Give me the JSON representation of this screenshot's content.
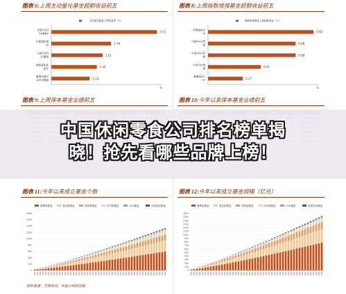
{
  "banner": {
    "line1": "中国休闲零食公司排名榜单揭",
    "line2": "晓！抢先看哪些品牌上榜！"
  },
  "source": "资料来源：万得资讯、中金公司研究部",
  "colors": {
    "accent": "#8b3a0e",
    "bar": "#c0501a",
    "bar_light": "#f0c890",
    "gray": "#bbbbbb",
    "line": "#999999"
  },
  "chart_data": [
    {
      "id": "fig6",
      "label": "图表 6:",
      "title": "上周主动量化基金超额收益前五",
      "type": "bar",
      "orientation": "horizontal",
      "legend": "主动量化基金上周收益率（%）",
      "categories": [
        "华夏沪深300增强A",
        "中欧量化驱动",
        "大成沪深300增强",
        "国金量化多因子",
        "景顺长城沪深300增强"
      ],
      "cat_lines": [
        [
          "华夏沪深3",
          "00增强A"
        ],
        [
          "中欧量化驱",
          "动"
        ],
        [
          "大成沪深3",
          "00增强"
        ],
        [
          "国金量化多",
          "因子"
        ],
        [
          "景顺长城沪",
          "深300增强"
        ]
      ],
      "values": [
        3.11,
        1.76,
        1.51,
        1.34,
        1.13
      ],
      "value_labels": [
        "3.11",
        "1.76",
        "1.51",
        "1.34",
        "1.13"
      ],
      "unit": "%"
    },
    {
      "id": "fig8",
      "label": "图表 8:",
      "title": "上周指数增强基金超额收益前五",
      "type": "bar",
      "orientation": "horizontal",
      "legend": "指数增强基金上周超额收益（%）",
      "categories": [
        "华宝量化对冲",
        "中金MSCI质量",
        "中金MSCI价值",
        "兴全300指增",
        "融通深证100"
      ],
      "cat_lines": [
        [
          "华宝量化对",
          "冲"
        ],
        [
          "中金MSCI质",
          "量"
        ],
        [
          "中金MSCI价",
          "值"
        ],
        [
          "兴全300指",
          "增"
        ],
        [
          "融通深证1",
          "00"
        ]
      ],
      "values": [
        0.82,
        0.68,
        0.68,
        0.41,
        0.27
      ],
      "value_labels": [
        "0.82",
        "0.68",
        "0.68",
        "0.41",
        "0.27"
      ],
      "unit": "%"
    },
    {
      "id": "fig9",
      "label": "图表 9:",
      "title": "上周保本基金业绩前五",
      "type": "table"
    },
    {
      "id": "fig10",
      "label": "图表 10:",
      "title": "今年以来保本基金业绩前五",
      "type": "table"
    },
    {
      "id": "fig11",
      "label": "图表 11:",
      "title": "今年以来成立基金个数",
      "type": "bar",
      "stacked": true,
      "legend": [
        "股票型基金",
        "混合型基金",
        "债券型基金",
        "货币型基金",
        "QDII基金",
        "另类投资基金"
      ],
      "ylim": [
        0,
        1800
      ],
      "yticks": [
        "0",
        "200",
        "400",
        "600",
        "800",
        "1000",
        "1200",
        "1400",
        "1600",
        "1800"
      ],
      "n_categories": 48,
      "series": [
        {
          "name": "股票型基金",
          "start": 25,
          "end": 600
        },
        {
          "name": "混合型基金",
          "start": 8,
          "end": 350
        },
        {
          "name": "债券型基金",
          "start": 4,
          "end": 180
        },
        {
          "name": "货币型基金",
          "start": 3,
          "end": 150
        },
        {
          "name": "QDII基金",
          "start": 2,
          "end": 40
        },
        {
          "name": "另类投资基金",
          "start": 1,
          "end": 20
        }
      ]
    },
    {
      "id": "fig12",
      "label": "图表 12:",
      "title": "今年以来成立基金规模（亿元）",
      "type": "bar",
      "stacked": true,
      "legend": [
        "股票型基金",
        "混合型基金",
        "债券型基金",
        "货币型基金",
        "QDII基金",
        "另类投资基金"
      ],
      "ylim": [
        0,
        1600
      ],
      "yticks": [
        "0",
        "100",
        "200",
        "300",
        "400",
        "500",
        "600",
        "700",
        "800",
        "900",
        "1000",
        "1100",
        "1200",
        "1300",
        "1400",
        "1500",
        "1600"
      ],
      "n_categories": 48,
      "series": [
        {
          "name": "股票型基金",
          "start": 20,
          "end": 780
        },
        {
          "name": "混合型基金",
          "start": 10,
          "end": 380
        },
        {
          "name": "债券型基金",
          "start": 6,
          "end": 200
        },
        {
          "name": "货币型基金",
          "start": 3,
          "end": 120
        },
        {
          "name": "QDII基金",
          "start": 1,
          "end": 30
        },
        {
          "name": "另类投资基金",
          "start": 1,
          "end": 20
        }
      ]
    }
  ]
}
